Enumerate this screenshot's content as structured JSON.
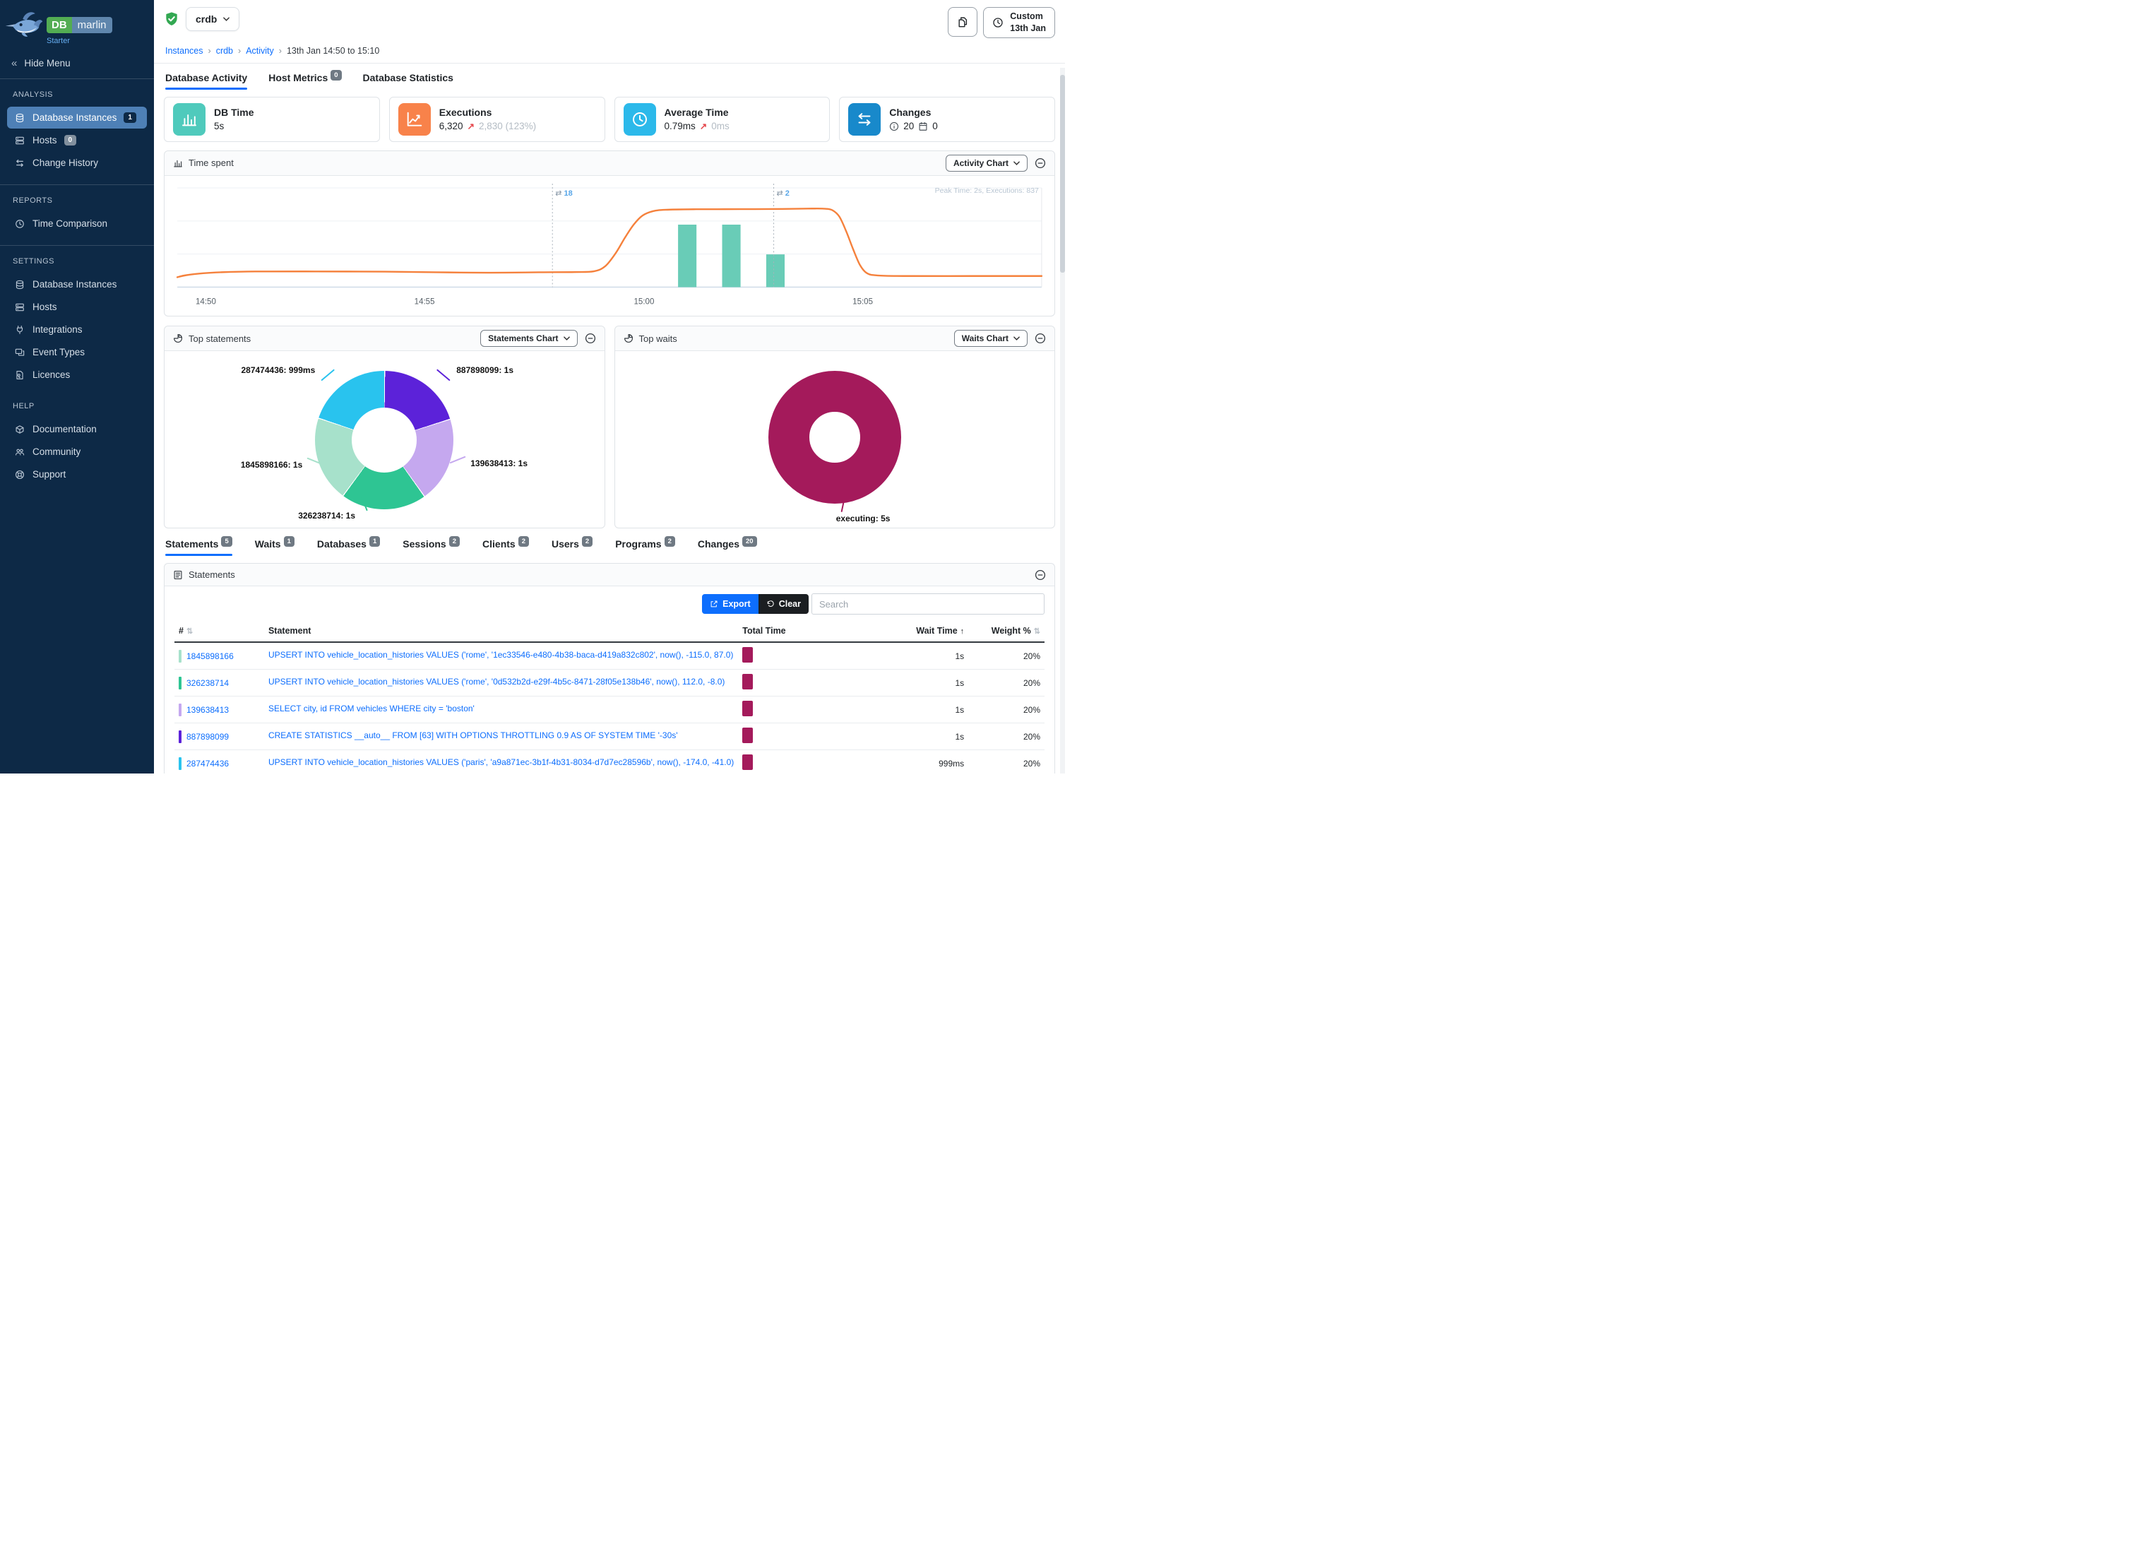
{
  "sidebar": {
    "brand": {
      "name_db": "DB",
      "name_marlin": "marlin",
      "edition": "Starter"
    },
    "hide_menu_label": "Hide Menu",
    "sections": [
      {
        "title": "ANALYSIS",
        "divider": false,
        "items": [
          {
            "label": "Database Instances",
            "icon": "database",
            "badge": "1",
            "badge_style": "dark",
            "active": true
          },
          {
            "label": "Hosts",
            "icon": "server",
            "badge": "0",
            "badge_style": "gray"
          },
          {
            "label": "Change History",
            "icon": "swap"
          }
        ]
      },
      {
        "title": "REPORTS",
        "divider": true,
        "items": [
          {
            "label": "Time Comparison",
            "icon": "clock"
          }
        ]
      },
      {
        "title": "SETTINGS",
        "divider": true,
        "items": [
          {
            "label": "Database Instances",
            "icon": "database"
          },
          {
            "label": "Hosts",
            "icon": "server"
          },
          {
            "label": "Integrations",
            "icon": "plug"
          },
          {
            "label": "Event Types",
            "icon": "screens"
          },
          {
            "label": "Licences",
            "icon": "licence"
          }
        ]
      },
      {
        "title": "HELP",
        "divider": false,
        "items": [
          {
            "label": "Documentation",
            "icon": "package"
          },
          {
            "label": "Community",
            "icon": "people"
          },
          {
            "label": "Support",
            "icon": "lifebuoy"
          }
        ]
      }
    ]
  },
  "header": {
    "instance_name": "crdb",
    "status": "healthy",
    "breadcrumb": [
      {
        "label": "Instances",
        "link": true
      },
      {
        "label": "crdb",
        "link": true
      },
      {
        "label": "Activity",
        "link": true
      },
      {
        "label": "13th Jan 14:50 to 15:10",
        "link": false
      }
    ],
    "time_range_button": {
      "line1": "Custom",
      "line2": "13th Jan"
    }
  },
  "main_tabs": [
    {
      "label": "Database Activity",
      "active": true
    },
    {
      "label": "Host Metrics",
      "badge": "0"
    },
    {
      "label": "Database Statistics"
    }
  ],
  "cards": {
    "db_time": {
      "title": "DB Time",
      "value": "5s",
      "accent": "#4fcabc"
    },
    "executions": {
      "title": "Executions",
      "value": "6,320",
      "delta_arrow": "↗",
      "delta": "2,830 (123%)",
      "accent": "#f8824a"
    },
    "average_time": {
      "title": "Average Time",
      "value": "0.79ms",
      "delta_arrow": "↗",
      "delta": "0ms",
      "accent": "#2cb9ea"
    },
    "changes": {
      "title": "Changes",
      "info_value": "20",
      "event_value": "0",
      "accent": "#1889cb"
    }
  },
  "panels": {
    "time_spent": {
      "title": "Time spent",
      "dropdown_label": "Activity Chart"
    },
    "top_statements": {
      "title": "Top statements",
      "dropdown_label": "Statements Chart"
    },
    "top_waits": {
      "title": "Top waits",
      "dropdown_label": "Waits Chart"
    }
  },
  "detail_tabs": [
    {
      "label": "Statements",
      "badge": "5",
      "active": true
    },
    {
      "label": "Waits",
      "badge": "1"
    },
    {
      "label": "Databases",
      "badge": "1"
    },
    {
      "label": "Sessions",
      "badge": "2"
    },
    {
      "label": "Clients",
      "badge": "2"
    },
    {
      "label": "Users",
      "badge": "2"
    },
    {
      "label": "Programs",
      "badge": "2"
    },
    {
      "label": "Changes",
      "badge": "20"
    }
  ],
  "statements_panel": {
    "title": "Statements",
    "export_label": "Export",
    "clear_label": "Clear",
    "search_placeholder": "Search",
    "columns": [
      {
        "label": "#",
        "sort": "inactive"
      },
      {
        "label": "Statement",
        "sort": "none"
      },
      {
        "label": "Total Time",
        "sort": "none"
      },
      {
        "label": "Wait Time",
        "sort": "asc",
        "align": "right"
      },
      {
        "label": "Weight %",
        "sort": "inactive",
        "align": "right"
      }
    ],
    "rows": [
      {
        "id": "1845898166",
        "color": "#a7e1cb",
        "statement": "UPSERT INTO vehicle_location_histories VALUES ('rome', '1ec33546-e480-4b38-baca-d419a832c802', now(), -115.0, 87.0)",
        "total_time_bar": "#a41a5b",
        "wait_time": "1s",
        "weight": "20%"
      },
      {
        "id": "326238714",
        "color": "#2ec593",
        "statement": "UPSERT INTO vehicle_location_histories VALUES ('rome', '0d532b2d-e29f-4b5c-8471-28f05e138b46', now(), 112.0, -8.0)",
        "total_time_bar": "#a41a5b",
        "wait_time": "1s",
        "weight": "20%"
      },
      {
        "id": "139638413",
        "color": "#c5a8ef",
        "statement": "SELECT city, id FROM vehicles WHERE city = 'boston'",
        "total_time_bar": "#a41a5b",
        "wait_time": "1s",
        "weight": "20%"
      },
      {
        "id": "887898099",
        "color": "#5c22d9",
        "statement": "CREATE STATISTICS __auto__ FROM [63] WITH OPTIONS THROTTLING 0.9 AS OF SYSTEM TIME '-30s'",
        "total_time_bar": "#a41a5b",
        "wait_time": "1s",
        "weight": "20%"
      },
      {
        "id": "287474436",
        "color": "#29c3ee",
        "statement": "UPSERT INTO vehicle_location_histories VALUES ('paris', 'a9a871ec-3b1f-4b31-8034-d7d7ec28596b', now(), -174.0, -41.0)",
        "total_time_bar": "#a41a5b",
        "wait_time": "999ms",
        "weight": "20%"
      }
    ]
  },
  "chart_data": [
    {
      "id": "time-spent",
      "type": "line+bar",
      "title": "Time spent",
      "peak_annotation": "Peak Time: 2s, Executions: 837",
      "x_ticks": [
        {
          "label": "14:50",
          "f": 0.033
        },
        {
          "label": "14:55",
          "f": 0.286
        },
        {
          "label": "15:00",
          "f": 0.54
        },
        {
          "label": "15:05",
          "f": 0.793
        }
      ],
      "y_peak": "2s",
      "executions_total": 837,
      "line_series": {
        "name": "DB Time",
        "color": "#f5813c",
        "points": [
          [
            0,
            0.1
          ],
          [
            0.01,
            0.12
          ],
          [
            0.03,
            0.14
          ],
          [
            0.05,
            0.15
          ],
          [
            0.09,
            0.158
          ],
          [
            0.16,
            0.158
          ],
          [
            0.24,
            0.156
          ],
          [
            0.3,
            0.15
          ],
          [
            0.34,
            0.146
          ],
          [
            0.38,
            0.146
          ],
          [
            0.42,
            0.15
          ],
          [
            0.46,
            0.152
          ],
          [
            0.482,
            0.16
          ],
          [
            0.495,
            0.21
          ],
          [
            0.507,
            0.34
          ],
          [
            0.518,
            0.5
          ],
          [
            0.528,
            0.63
          ],
          [
            0.538,
            0.72
          ],
          [
            0.55,
            0.765
          ],
          [
            0.565,
            0.78
          ],
          [
            0.6,
            0.785
          ],
          [
            0.65,
            0.786
          ],
          [
            0.7,
            0.788
          ],
          [
            0.735,
            0.792
          ],
          [
            0.75,
            0.79
          ],
          [
            0.758,
            0.775
          ],
          [
            0.766,
            0.71
          ],
          [
            0.774,
            0.56
          ],
          [
            0.782,
            0.38
          ],
          [
            0.79,
            0.22
          ],
          [
            0.798,
            0.14
          ],
          [
            0.81,
            0.118
          ],
          [
            0.84,
            0.112
          ],
          [
            0.92,
            0.112
          ],
          [
            1,
            0.112
          ]
        ]
      },
      "bar_series": {
        "name": "Changes",
        "color": "#69ccb7",
        "bars": [
          {
            "f": 0.59,
            "h": 0.63
          },
          {
            "f": 0.641,
            "h": 0.63
          },
          {
            "f": 0.692,
            "h": 0.33
          }
        ]
      },
      "event_markers": [
        {
          "f": 0.434,
          "icon": "swap",
          "count": "18"
        },
        {
          "f": 0.69,
          "icon": "swap",
          "count": "2"
        }
      ]
    },
    {
      "id": "top-statements",
      "type": "donut",
      "title": "Top statements",
      "slices": [
        {
          "label": "887898099",
          "display": "1s",
          "seconds": 1,
          "color": "#5c22d9"
        },
        {
          "label": "139638413",
          "display": "1s",
          "seconds": 1,
          "color": "#c5a8ef"
        },
        {
          "label": "326238714",
          "display": "1s",
          "seconds": 1,
          "color": "#2ec593"
        },
        {
          "label": "1845898166",
          "display": "1s",
          "seconds": 1,
          "color": "#a7e1cb"
        },
        {
          "label": "287474436",
          "display": "999ms",
          "seconds": 0.999,
          "color": "#29c3ee"
        }
      ]
    },
    {
      "id": "top-waits",
      "type": "donut",
      "title": "Top waits",
      "slices": [
        {
          "label": "executing",
          "display": "5s",
          "seconds": 5,
          "color": "#a41a5b"
        }
      ]
    }
  ]
}
